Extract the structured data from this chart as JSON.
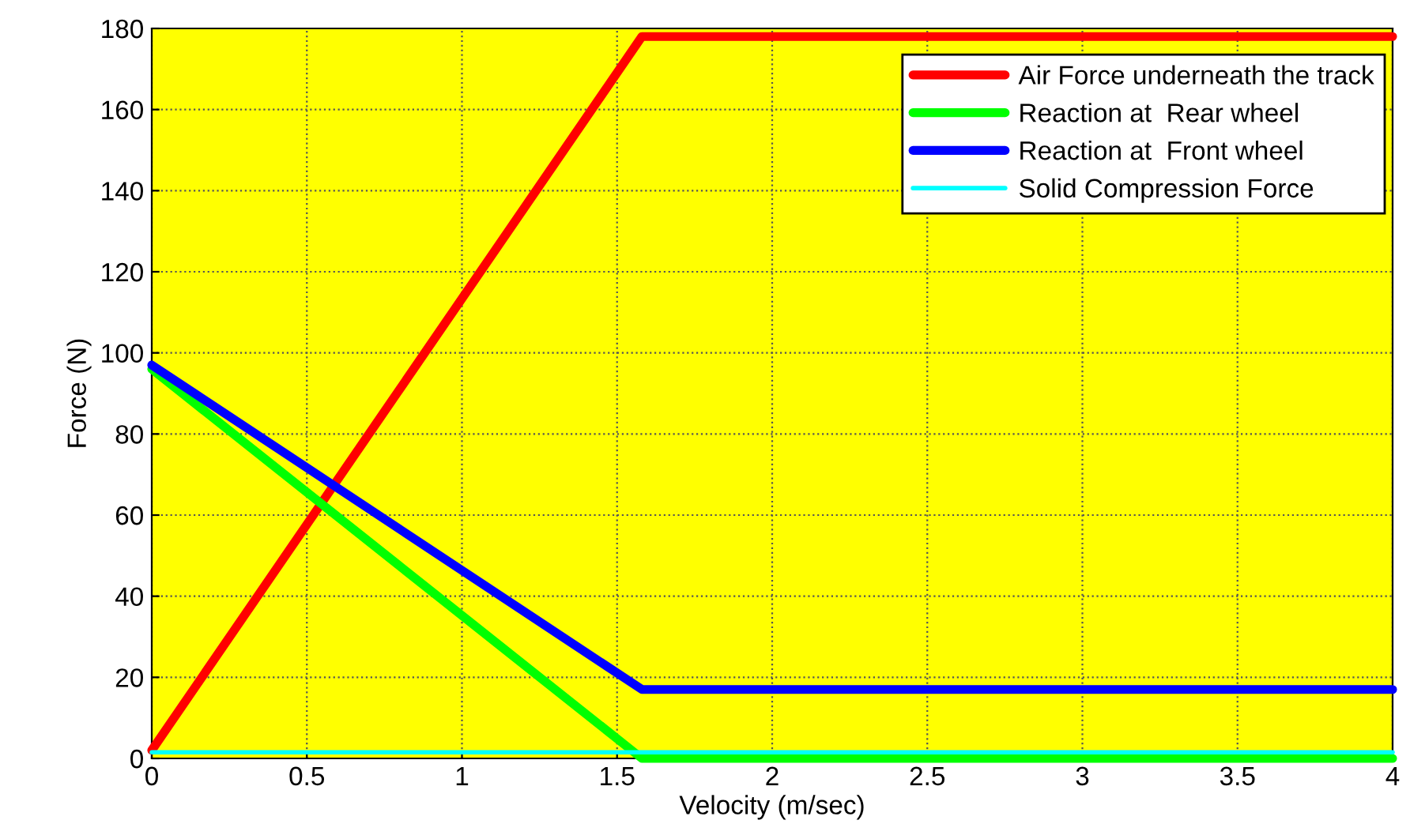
{
  "chart_data": {
    "type": "line",
    "xlabel": "Velocity (m/sec)",
    "ylabel": "Force (N)",
    "xlim": [
      0,
      4
    ],
    "ylim": [
      0,
      180
    ],
    "xticks": [
      0,
      0.5,
      1,
      1.5,
      2,
      2.5,
      3,
      3.5,
      4
    ],
    "yticks": [
      0,
      20,
      40,
      60,
      80,
      100,
      120,
      140,
      160,
      180
    ],
    "grid": true,
    "legend": "top right",
    "marker": "none",
    "line_style": "solid",
    "series": [
      {
        "name": "Air Force underneath the track",
        "color": "#ff0000",
        "x": [
          0,
          1.58,
          4
        ],
        "values": [
          2,
          178,
          178
        ]
      },
      {
        "name": "Reaction at  Rear wheel",
        "color": "#00ff00",
        "x": [
          0,
          1.58,
          4
        ],
        "values": [
          96,
          0,
          0
        ]
      },
      {
        "name": "Reaction at  Front wheel",
        "color": "#0000ff",
        "x": [
          0,
          1.58,
          4
        ],
        "values": [
          97,
          17,
          17
        ]
      },
      {
        "name": "Solid Compression Force",
        "color": "#00ffff",
        "x": [
          0,
          4
        ],
        "values": [
          1.5,
          1.5
        ]
      }
    ]
  }
}
